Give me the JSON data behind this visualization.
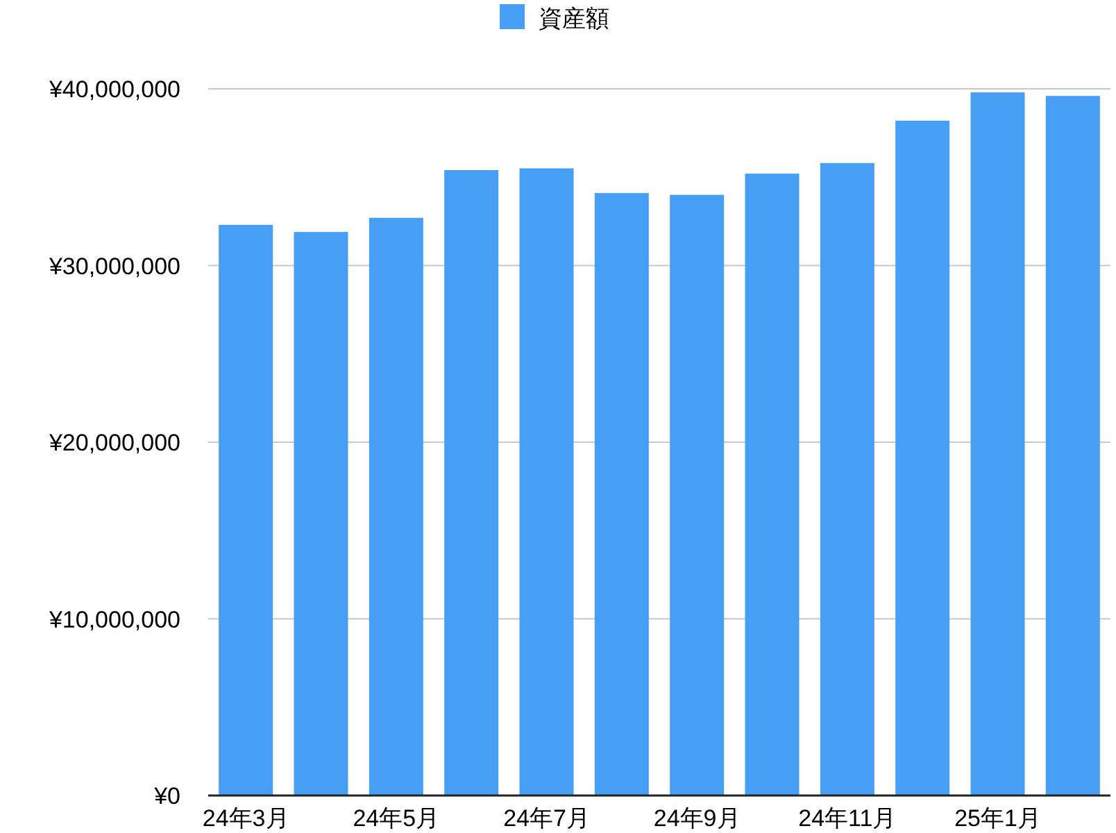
{
  "chart_data": {
    "type": "bar",
    "categories": [
      "24年3月",
      null,
      "24年5月",
      null,
      "24年7月",
      null,
      "24年9月",
      null,
      "24年11月",
      null,
      "25年1月",
      null
    ],
    "series": [
      {
        "name": "資産額",
        "color": "#479ef5",
        "values": [
          32300000,
          31900000,
          32700000,
          35400000,
          35500000,
          34100000,
          34000000,
          35200000,
          35800000,
          38200000,
          39800000,
          39600000
        ]
      }
    ],
    "ylim": [
      0,
      40000000
    ],
    "yticks": [
      {
        "value": 0,
        "label": "¥0"
      },
      {
        "value": 10000000,
        "label": "¥10,000,000"
      },
      {
        "value": 20000000,
        "label": "¥20,000,000"
      },
      {
        "value": 30000000,
        "label": "¥30,000,000"
      },
      {
        "value": 40000000,
        "label": "¥40,000,000"
      }
    ],
    "grid": "y",
    "legend": "top"
  }
}
